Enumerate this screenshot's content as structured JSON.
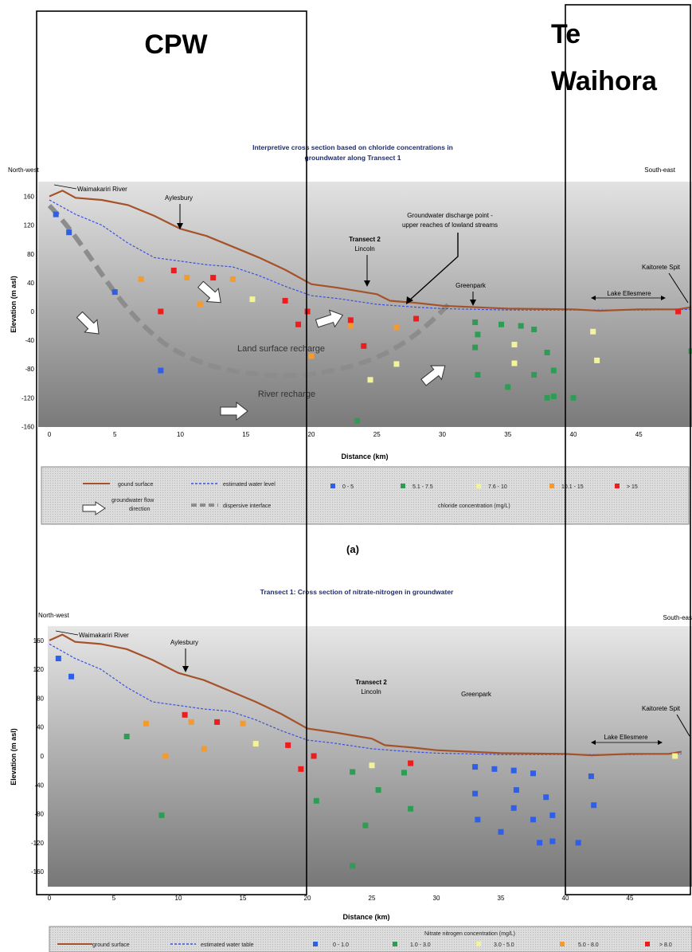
{
  "overlay": {
    "left_label": "CPW",
    "right_label_line1": "Te",
    "right_label_line2": "Waihora"
  },
  "panel_caption": "(a)",
  "chart_data": [
    {
      "type": "scatter",
      "title_line1": "Interpretive cross section based on chloride concentrations in",
      "title_line2": "groundwater along Transect 1",
      "xlabel": "Distance (km)",
      "ylabel": "Elevation (m asl)",
      "xlim": [
        0,
        49
      ],
      "ylim": [
        -160,
        180
      ],
      "xticks": [
        "0",
        "5",
        "10",
        "15",
        "20",
        "25",
        "30",
        "35",
        "40",
        "45"
      ],
      "yticks": [
        "160",
        "120",
        "80",
        "40",
        "0",
        "-40",
        "-80",
        "-120",
        "-160"
      ],
      "corner_left": "North-west",
      "corner_right": "South-east",
      "annotations": {
        "waimakariri": "Waimakariri River",
        "aylesbury": "Aylesbury",
        "transect2": "Transect 2",
        "lincoln": "Lincoln",
        "discharge1": "Groundwater discharge point -",
        "discharge2": "upper reaches of lowland streams",
        "greenpark": "Greenpark",
        "kaitorete": "Kaitorete Spit",
        "ellesmere": "Lake Ellesmere",
        "land_recharge": "Land surface recharge",
        "river_recharge": "River recharge"
      },
      "legend": {
        "ground": "gound surface",
        "water": "estimated water level",
        "flow1": "groundwater flow",
        "flow2": "direction",
        "interface": "dispersive interface",
        "classes": [
          "0 - 5",
          "5.1 - 7.5",
          "7.6 - 10",
          "10.1 - 15",
          "> 15"
        ],
        "caption": "chloride concentration (mg/L)"
      },
      "ground_surface": [
        [
          0,
          160
        ],
        [
          1,
          168
        ],
        [
          2,
          158
        ],
        [
          4,
          155
        ],
        [
          6,
          148
        ],
        [
          8,
          133
        ],
        [
          10,
          115
        ],
        [
          12,
          105
        ],
        [
          14,
          90
        ],
        [
          16,
          75
        ],
        [
          18,
          58
        ],
        [
          20,
          38
        ],
        [
          22,
          33
        ],
        [
          24,
          27
        ],
        [
          25,
          24
        ],
        [
          26,
          15
        ],
        [
          28,
          12
        ],
        [
          30,
          8
        ],
        [
          35,
          4
        ],
        [
          40,
          3
        ],
        [
          42,
          1
        ],
        [
          45,
          3
        ],
        [
          48,
          3
        ],
        [
          49,
          6
        ]
      ],
      "water_level": [
        [
          0,
          155
        ],
        [
          2,
          135
        ],
        [
          4,
          120
        ],
        [
          6,
          95
        ],
        [
          8,
          75
        ],
        [
          10,
          70
        ],
        [
          12,
          65
        ],
        [
          14,
          62
        ],
        [
          16,
          50
        ],
        [
          18,
          35
        ],
        [
          20,
          22
        ],
        [
          22,
          18
        ],
        [
          25,
          10
        ],
        [
          28,
          6
        ],
        [
          30,
          4
        ],
        [
          35,
          2
        ],
        [
          40,
          2
        ],
        [
          45,
          2
        ],
        [
          49,
          3
        ]
      ],
      "series": [
        {
          "name": "0 - 5",
          "color": "#2f5fe6",
          "points": [
            [
              0.5,
              135
            ],
            [
              1.5,
              110
            ],
            [
              5,
              27
            ],
            [
              8.5,
              -82
            ]
          ]
        },
        {
          "name": "5.1 - 7.5",
          "color": "#2f9c55",
          "points": [
            [
              23.5,
              -152
            ],
            [
              32.5,
              -15
            ],
            [
              32.7,
              -32
            ],
            [
              32.5,
              -50
            ],
            [
              32.7,
              -88
            ],
            [
              34.5,
              -18
            ],
            [
              35,
              -105
            ],
            [
              36,
              -20
            ],
            [
              37,
              -25
            ],
            [
              37,
              -88
            ],
            [
              38,
              -120
            ],
            [
              38,
              -57
            ],
            [
              38.5,
              -82
            ],
            [
              38.5,
              -118
            ],
            [
              40,
              -120
            ],
            [
              49,
              -55
            ]
          ]
        },
        {
          "name": "7.6 - 10",
          "color": "#f3f39a",
          "points": [
            [
              15.5,
              17
            ],
            [
              24.5,
              -95
            ],
            [
              26.5,
              -73
            ],
            [
              35.5,
              -46
            ],
            [
              35.5,
              -72
            ],
            [
              41.5,
              -28
            ],
            [
              41.8,
              -68
            ]
          ]
        },
        {
          "name": "10.1 - 15",
          "color": "#f59a2c",
          "points": [
            [
              7,
              45
            ],
            [
              10.5,
              47
            ],
            [
              11.5,
              10
            ],
            [
              14,
              45
            ],
            [
              20,
              -62
            ],
            [
              23,
              -20
            ],
            [
              26.5,
              -22
            ]
          ]
        },
        {
          "name": "> 15",
          "color": "#ee1c1c",
          "points": [
            [
              8.5,
              0
            ],
            [
              9.5,
              57
            ],
            [
              12.5,
              47
            ],
            [
              18,
              15
            ],
            [
              19,
              -18
            ],
            [
              19.7,
              0
            ],
            [
              23,
              -12
            ],
            [
              24,
              -48
            ],
            [
              28,
              -10
            ],
            [
              48,
              0
            ]
          ]
        }
      ]
    },
    {
      "type": "scatter",
      "title": "Transect 1: Cross section of nitrate-nitrogen in groundwater",
      "xlabel": "Distance (km)",
      "ylabel": "Elevation (m asl)",
      "xlim": [
        0,
        49
      ],
      "ylim": [
        -160,
        180
      ],
      "xticks": [
        "0",
        "5",
        "10",
        "15",
        "20",
        "25",
        "30",
        "35",
        "40",
        "45"
      ],
      "yticks": [
        "160",
        "120",
        "80",
        "40",
        "0",
        "-40",
        "-80",
        "-120",
        "-160"
      ],
      "corner_left": "North-west",
      "corner_right": "South-eas",
      "annotations": {
        "waimakariri": "Waimakariri River",
        "aylesbury": "Aylesbury",
        "transect2": "Transect 2",
        "lincoln": "Lincoln",
        "greenpark": "Greenpark",
        "kaitorete": "Kaitorete Spit",
        "ellesmere": "Lake Ellesmere"
      },
      "legend": {
        "title": "Nitrate nitrogen concentration (mg/L)",
        "ground": "ground surface",
        "water": "estimated water table",
        "classes": [
          "0 - 1.0",
          "1.0 - 3.0",
          "3.0 - 5.0",
          "5.0 - 8.0",
          "> 8.0"
        ]
      },
      "ground_surface": [
        [
          0,
          160
        ],
        [
          1,
          168
        ],
        [
          2,
          158
        ],
        [
          4,
          155
        ],
        [
          6,
          148
        ],
        [
          8,
          133
        ],
        [
          10,
          115
        ],
        [
          12,
          105
        ],
        [
          14,
          90
        ],
        [
          16,
          75
        ],
        [
          18,
          58
        ],
        [
          20,
          38
        ],
        [
          22,
          33
        ],
        [
          24,
          27
        ],
        [
          25,
          24
        ],
        [
          26,
          15
        ],
        [
          28,
          12
        ],
        [
          30,
          8
        ],
        [
          35,
          4
        ],
        [
          40,
          3
        ],
        [
          42,
          1
        ],
        [
          45,
          3
        ],
        [
          48,
          3
        ],
        [
          49,
          6
        ]
      ],
      "water_level": [
        [
          0,
          155
        ],
        [
          2,
          135
        ],
        [
          4,
          120
        ],
        [
          6,
          95
        ],
        [
          8,
          75
        ],
        [
          10,
          70
        ],
        [
          12,
          65
        ],
        [
          14,
          62
        ],
        [
          16,
          50
        ],
        [
          18,
          35
        ],
        [
          20,
          22
        ],
        [
          22,
          18
        ],
        [
          25,
          10
        ],
        [
          28,
          6
        ],
        [
          30,
          4
        ],
        [
          35,
          2
        ],
        [
          40,
          2
        ],
        [
          45,
          2
        ],
        [
          49,
          3
        ]
      ],
      "series": [
        {
          "name": "0 - 1.0",
          "color": "#2f5fe6",
          "points": [
            [
              0.7,
              135
            ],
            [
              1.7,
              110
            ],
            [
              33,
              -15
            ],
            [
              33,
              -52
            ],
            [
              33.2,
              -88
            ],
            [
              34.5,
              -18
            ],
            [
              35,
              -105
            ],
            [
              36,
              -20
            ],
            [
              36.2,
              -47
            ],
            [
              36,
              -72
            ],
            [
              37.5,
              -24
            ],
            [
              37.5,
              -88
            ],
            [
              38,
              -120
            ],
            [
              38.5,
              -57
            ],
            [
              39,
              -82
            ],
            [
              39,
              -118
            ],
            [
              41,
              -120
            ],
            [
              42,
              -28
            ],
            [
              42.2,
              -68
            ]
          ]
        },
        {
          "name": "1.0 - 3.0",
          "color": "#2f9c55",
          "points": [
            [
              6,
              27
            ],
            [
              8.7,
              -82
            ],
            [
              20.7,
              -62
            ],
            [
              23.5,
              -22
            ],
            [
              24.5,
              -96
            ],
            [
              25.5,
              -47
            ],
            [
              27.5,
              -23
            ],
            [
              28,
              -73
            ],
            [
              23.5,
              -152
            ]
          ]
        },
        {
          "name": "3.0 - 5.0",
          "color": "#f3f39a",
          "points": [
            [
              16,
              17
            ],
            [
              25,
              -13
            ],
            [
              48.5,
              0
            ]
          ]
        },
        {
          "name": "5.0 - 8.0",
          "color": "#f59a2c",
          "points": [
            [
              7.5,
              45
            ],
            [
              9,
              0
            ],
            [
              11,
              47
            ],
            [
              12,
              10
            ],
            [
              15,
              45
            ]
          ]
        },
        {
          "name": "> 8.0",
          "color": "#ee1c1c",
          "points": [
            [
              10.5,
              57
            ],
            [
              13,
              47
            ],
            [
              18.5,
              15
            ],
            [
              19.5,
              -18
            ],
            [
              20.5,
              0
            ],
            [
              28,
              -10
            ]
          ]
        }
      ]
    }
  ]
}
